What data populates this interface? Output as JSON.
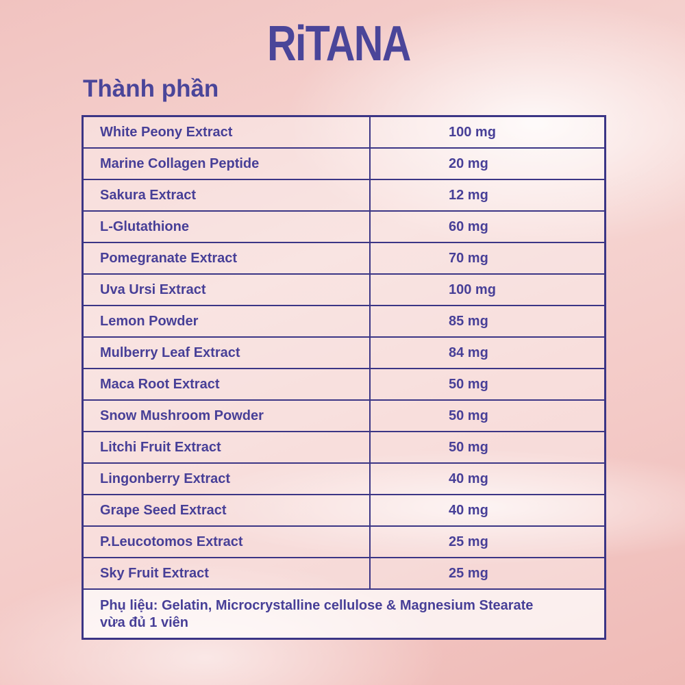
{
  "brand": "RiTANA",
  "title": "Thành phần",
  "colors": {
    "primary": "#4a4599",
    "border": "#3b3585"
  },
  "ingredients": [
    {
      "name": "White Peony Extract",
      "amount": "100 mg"
    },
    {
      "name": "Marine Collagen Peptide",
      "amount": "20 mg"
    },
    {
      "name": "Sakura Extract",
      "amount": "12 mg"
    },
    {
      "name": "L-Glutathione",
      "amount": "60 mg"
    },
    {
      "name": "Pomegranate Extract",
      "amount": "70 mg"
    },
    {
      "name": "Uva Ursi Extract",
      "amount": "100 mg"
    },
    {
      "name": "Lemon Powder",
      "amount": "85 mg"
    },
    {
      "name": "Mulberry Leaf Extract",
      "amount": "84 mg"
    },
    {
      "name": "Maca Root Extract",
      "amount": "50 mg"
    },
    {
      "name": "Snow Mushroom Powder",
      "amount": "50 mg"
    },
    {
      "name": "Litchi Fruit Extract",
      "amount": "50 mg"
    },
    {
      "name": "Lingonberry Extract",
      "amount": "40 mg"
    },
    {
      "name": "Grape Seed Extract",
      "amount": "40 mg"
    },
    {
      "name": "P.Leucotomos Extract",
      "amount": "25 mg"
    },
    {
      "name": "Sky Fruit Extract",
      "amount": "25 mg"
    }
  ],
  "excipients_line1": "Phụ liệu: Gelatin, Microcrystalline cellulose & Magnesium Stearate",
  "excipients_line2": "vừa đủ 1 viên"
}
